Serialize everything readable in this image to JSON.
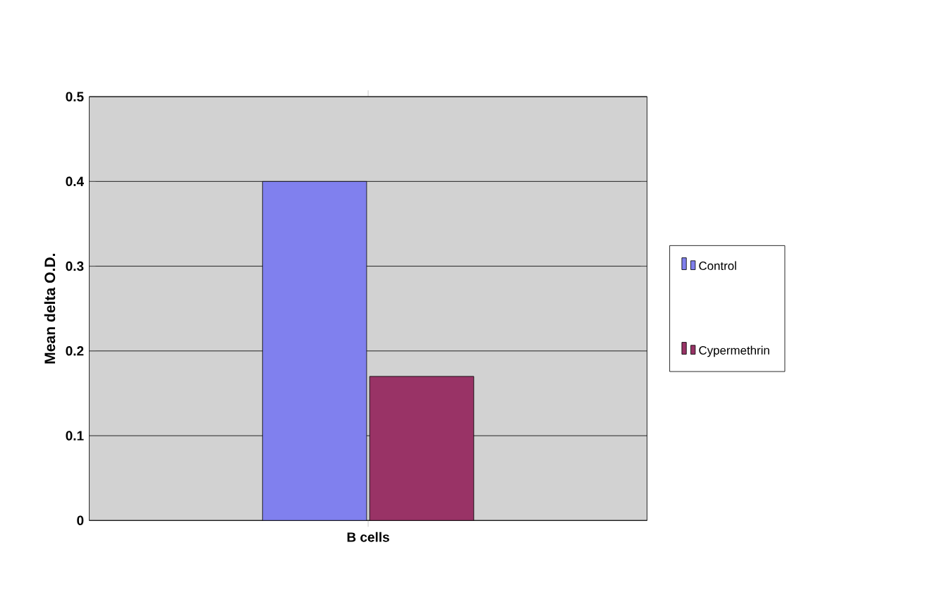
{
  "chart_data": {
    "type": "bar",
    "ylabel": "Mean delta O.D.",
    "categories": [
      "B cells"
    ],
    "series": [
      {
        "name": "Control",
        "color": "#8080ee",
        "values": [
          0.4
        ]
      },
      {
        "name": "Cypermethrin",
        "color": "#993366",
        "values": [
          0.17
        ]
      }
    ],
    "ylim": [
      0,
      0.5
    ],
    "yticks": [
      0,
      0.1,
      0.2,
      0.3,
      0.4,
      0.5
    ],
    "grid": "y",
    "legend": "right"
  }
}
